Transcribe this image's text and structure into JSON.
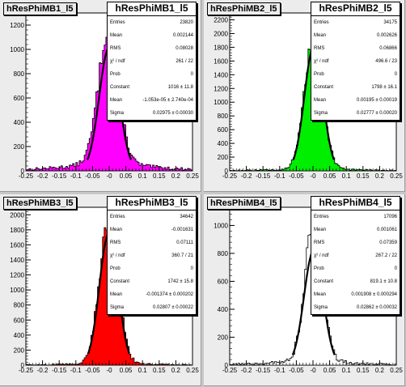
{
  "x_ticks": [
    "-0.25",
    "-0.2",
    "-0.15",
    "-0.1",
    "-0.05",
    "-0",
    "0.05",
    "0.1",
    "0.15",
    "0.2",
    "0.25"
  ],
  "chart_data": [
    {
      "type": "bar",
      "title": "hResPhiMB1_l5",
      "fill_color": "#ff00ff",
      "xlim": [
        -0.25,
        0.25
      ],
      "ylim": [
        0,
        1300
      ],
      "y_ticks": [
        0,
        200,
        400,
        600,
        800,
        1000,
        1200
      ],
      "y_tick_labels": [
        "0",
        "200",
        "400",
        "600",
        "800",
        "1000",
        "1200"
      ],
      "hist": {
        "mean": -0.0018,
        "sigma": 0.03,
        "peak": 1080,
        "bg": 100
      },
      "fit": {
        "constant": 1016,
        "mean": 0.0,
        "sigma": 0.02975
      },
      "stats": {
        "name": "hResPhiMB1_l5",
        "rows": [
          {
            "k": "Entries",
            "v": "23820"
          },
          {
            "k": "Mean",
            "v": "0.002144"
          },
          {
            "k": "RMS",
            "v": "0.08028"
          },
          {
            "k": "χ² / ndf",
            "v": "261 / 22"
          },
          {
            "k": "Prob",
            "v": "0"
          },
          {
            "k": "Constant",
            "v": "1016 ± 11.8"
          },
          {
            "k": "Mean",
            "v": "-1.053e-05 ± 2.740e-04"
          },
          {
            "k": "Sigma",
            "v": "0.02975 ± 0.00030"
          }
        ]
      }
    },
    {
      "type": "bar",
      "title": "hResPhiMB2_l5",
      "fill_color": "#00ee00",
      "xlim": [
        -0.25,
        0.25
      ],
      "ylim": [
        0,
        2300
      ],
      "y_ticks": [
        0,
        200,
        400,
        600,
        800,
        1000,
        1200,
        1400,
        1600,
        1800,
        2000,
        2200
      ],
      "y_tick_labels": [
        "0",
        "200",
        "400",
        "600",
        "800",
        "1000",
        "1200",
        "1400",
        "1600",
        "1800",
        "2000",
        "2200"
      ],
      "hist": {
        "mean": 0.0019,
        "sigma": 0.027,
        "peak": 1900,
        "bg": 40
      },
      "fit": {
        "constant": 1798,
        "mean": 0.00195,
        "sigma": 0.02777
      },
      "stats": {
        "name": "hResPhiMB2_l5",
        "rows": [
          {
            "k": "Entries",
            "v": "34175"
          },
          {
            "k": "Mean",
            "v": "0.002626"
          },
          {
            "k": "RMS",
            "v": "0.06866"
          },
          {
            "k": "χ² / ndf",
            "v": "496.6 / 23"
          },
          {
            "k": "Prob",
            "v": "0"
          },
          {
            "k": "Constant",
            "v": "1798 ± 16.1"
          },
          {
            "k": "Mean",
            "v": "0.00195 ± 0.00019"
          },
          {
            "k": "Sigma",
            "v": "0.02777 ± 0.00020"
          }
        ]
      }
    },
    {
      "type": "bar",
      "title": "hResPhiMB3_l5",
      "fill_color": "#ff0000",
      "xlim": [
        -0.25,
        0.25
      ],
      "ylim": [
        0,
        2100
      ],
      "y_ticks": [
        0,
        200,
        400,
        600,
        800,
        1000,
        1200,
        1400,
        1600,
        1800,
        2000
      ],
      "y_tick_labels": [
        "0",
        "200",
        "400",
        "600",
        "800",
        "1000",
        "1200",
        "1400",
        "1600",
        "1800",
        "2000"
      ],
      "hist": {
        "mean": -0.0012,
        "sigma": 0.028,
        "peak": 1880,
        "bg": 30
      },
      "fit": {
        "constant": 1742,
        "mean": -0.001374,
        "sigma": 0.02807
      },
      "stats": {
        "name": "hResPhiMB3_l5",
        "rows": [
          {
            "k": "Entries",
            "v": "34642"
          },
          {
            "k": "Mean",
            "v": "-0.001631"
          },
          {
            "k": "RMS",
            "v": "0.07111"
          },
          {
            "k": "χ² / ndf",
            "v": "360.7 / 21"
          },
          {
            "k": "Prob",
            "v": "0"
          },
          {
            "k": "Constant",
            "v": "1742 ± 15.8"
          },
          {
            "k": "Mean",
            "v": "-0.001374 ± 0.000202"
          },
          {
            "k": "Sigma",
            "v": "0.02807 ± 0.00022"
          }
        ]
      }
    },
    {
      "type": "bar",
      "title": "hResPhiMB4_l5",
      "fill_color": "#ffffff",
      "xlim": [
        -0.25,
        0.25
      ],
      "ylim": [
        0,
        1130
      ],
      "y_ticks": [
        0,
        200,
        400,
        600,
        800,
        1000
      ],
      "y_tick_labels": [
        "0",
        "200",
        "400",
        "600",
        "800",
        "1000"
      ],
      "hist": {
        "mean": 0.0019,
        "sigma": 0.026,
        "peak": 1000,
        "bg": 45
      },
      "fit": {
        "constant": 819.1,
        "mean": 0.001908,
        "sigma": 0.02862
      },
      "stats": {
        "name": "hResPhiMB4_l5",
        "rows": [
          {
            "k": "Entries",
            "v": "17096"
          },
          {
            "k": "Mean",
            "v": "0.001061"
          },
          {
            "k": "RMS",
            "v": "0.07359"
          },
          {
            "k": "χ² / ndf",
            "v": "267.2 / 22"
          },
          {
            "k": "Prob",
            "v": "0"
          },
          {
            "k": "Constant",
            "v": "819.1 ± 10.8"
          },
          {
            "k": "Mean",
            "v": "0.001908 ± 0.000294"
          },
          {
            "k": "Sigma",
            "v": "0.02862 ± 0.00032"
          }
        ]
      }
    }
  ]
}
